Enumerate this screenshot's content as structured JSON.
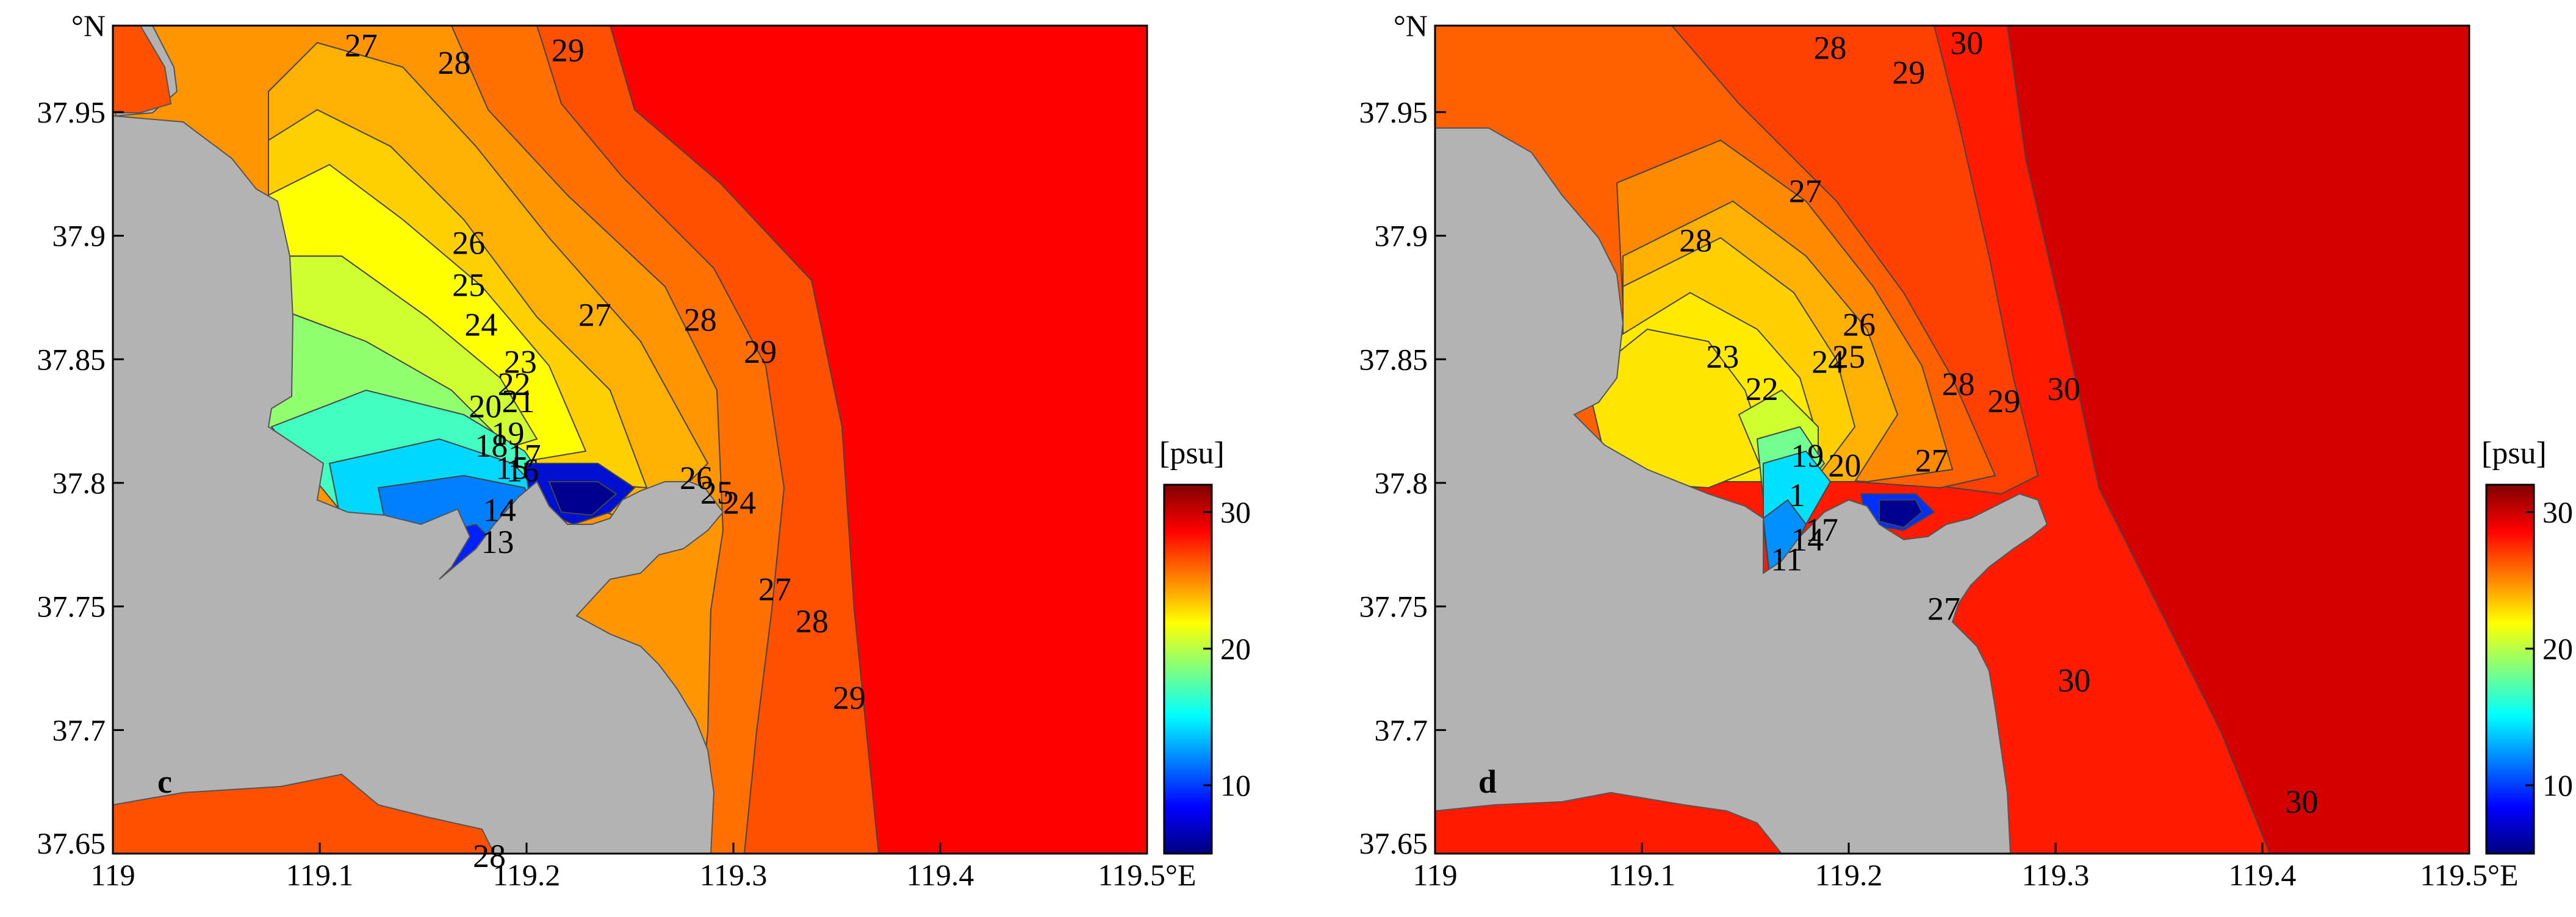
{
  "chart_data": [
    {
      "type": "contour",
      "panel_letter": "c",
      "x_ticks": [
        "119",
        "119.1",
        "119.2",
        "119.3",
        "119.4",
        "119.5°E"
      ],
      "x_tick_values": [
        119.0,
        119.1,
        119.2,
        119.3,
        119.4,
        119.5
      ],
      "y_ticks": [
        "°N",
        "37.95",
        "37.9",
        "37.85",
        "37.8",
        "37.75",
        "37.7",
        "37.65"
      ],
      "y_tick_values": [
        37.985,
        37.95,
        37.9,
        37.85,
        37.8,
        37.75,
        37.7,
        37.65
      ],
      "xlim": [
        119.0,
        119.5
      ],
      "ylim": [
        37.65,
        37.985
      ],
      "colorbar": {
        "label": "[psu]",
        "ticks": [
          "10",
          "20",
          "30"
        ],
        "tick_values": [
          10,
          20,
          30
        ],
        "range": [
          5,
          32
        ]
      },
      "contour_labels": [
        {
          "text": "27",
          "x": 119.12,
          "y": 37.977
        },
        {
          "text": "28",
          "x": 119.165,
          "y": 37.97
        },
        {
          "text": "29",
          "x": 119.22,
          "y": 37.975
        },
        {
          "text": "26",
          "x": 119.172,
          "y": 37.897
        },
        {
          "text": "25",
          "x": 119.172,
          "y": 37.88
        },
        {
          "text": "24",
          "x": 119.178,
          "y": 37.864
        },
        {
          "text": "27",
          "x": 119.233,
          "y": 37.868
        },
        {
          "text": "28",
          "x": 119.284,
          "y": 37.866
        },
        {
          "text": "29",
          "x": 119.313,
          "y": 37.853
        },
        {
          "text": "23",
          "x": 119.197,
          "y": 37.849
        },
        {
          "text": "22",
          "x": 119.194,
          "y": 37.84
        },
        {
          "text": "21",
          "x": 119.196,
          "y": 37.833
        },
        {
          "text": "20",
          "x": 119.18,
          "y": 37.831
        },
        {
          "text": "19",
          "x": 119.191,
          "y": 37.82
        },
        {
          "text": "18",
          "x": 119.183,
          "y": 37.815
        },
        {
          "text": "17",
          "x": 119.199,
          "y": 37.811
        },
        {
          "text": "16",
          "x": 119.198,
          "y": 37.805
        },
        {
          "text": "15",
          "x": 119.193,
          "y": 37.806
        },
        {
          "text": "14",
          "x": 119.187,
          "y": 37.789
        },
        {
          "text": "13",
          "x": 119.186,
          "y": 37.776
        },
        {
          "text": "26",
          "x": 119.282,
          "y": 37.802
        },
        {
          "text": "25",
          "x": 119.292,
          "y": 37.796
        },
        {
          "text": "24",
          "x": 119.303,
          "y": 37.792
        },
        {
          "text": "27",
          "x": 119.32,
          "y": 37.757
        },
        {
          "text": "28",
          "x": 119.338,
          "y": 37.744
        },
        {
          "text": "29",
          "x": 119.356,
          "y": 37.713
        },
        {
          "text": "28",
          "x": 119.182,
          "y": 37.649
        }
      ]
    },
    {
      "type": "contour",
      "panel_letter": "d",
      "x_ticks": [
        "119",
        "119.1",
        "119.2",
        "119.3",
        "119.4",
        "119.5°E"
      ],
      "x_tick_values": [
        119.0,
        119.1,
        119.2,
        119.3,
        119.4,
        119.5
      ],
      "y_ticks": [
        "°N",
        "37.95",
        "37.9",
        "37.85",
        "37.8",
        "37.75",
        "37.7",
        "37.65"
      ],
      "y_tick_values": [
        37.985,
        37.95,
        37.9,
        37.85,
        37.8,
        37.75,
        37.7,
        37.65
      ],
      "xlim": [
        119.0,
        119.5
      ],
      "ylim": [
        37.65,
        37.985
      ],
      "colorbar": {
        "label": "[psu]",
        "ticks": [
          "10",
          "20",
          "30"
        ],
        "tick_values": [
          10,
          20,
          30
        ],
        "range": [
          5,
          32
        ]
      },
      "contour_labels": [
        {
          "text": "28",
          "x": 119.191,
          "y": 37.976
        },
        {
          "text": "29",
          "x": 119.229,
          "y": 37.966
        },
        {
          "text": "30",
          "x": 119.257,
          "y": 37.978
        },
        {
          "text": "27",
          "x": 119.179,
          "y": 37.918
        },
        {
          "text": "28",
          "x": 119.126,
          "y": 37.898
        },
        {
          "text": "26",
          "x": 119.205,
          "y": 37.864
        },
        {
          "text": "25",
          "x": 119.2,
          "y": 37.851
        },
        {
          "text": "24",
          "x": 119.19,
          "y": 37.849
        },
        {
          "text": "23",
          "x": 119.139,
          "y": 37.851
        },
        {
          "text": "22",
          "x": 119.158,
          "y": 37.838
        },
        {
          "text": "28",
          "x": 119.253,
          "y": 37.84
        },
        {
          "text": "29",
          "x": 119.275,
          "y": 37.833
        },
        {
          "text": "30",
          "x": 119.304,
          "y": 37.838
        },
        {
          "text": "19",
          "x": 119.18,
          "y": 37.811
        },
        {
          "text": "20",
          "x": 119.198,
          "y": 37.807
        },
        {
          "text": "27",
          "x": 119.24,
          "y": 37.809
        },
        {
          "text": "1",
          "x": 119.175,
          "y": 37.795
        },
        {
          "text": "14",
          "x": 119.18,
          "y": 37.777
        },
        {
          "text": "17",
          "x": 119.187,
          "y": 37.781
        },
        {
          "text": "11",
          "x": 119.17,
          "y": 37.769
        },
        {
          "text": "27",
          "x": 119.246,
          "y": 37.749
        },
        {
          "text": "30",
          "x": 119.309,
          "y": 37.72
        },
        {
          "text": "30",
          "x": 119.419,
          "y": 37.671
        }
      ]
    }
  ]
}
